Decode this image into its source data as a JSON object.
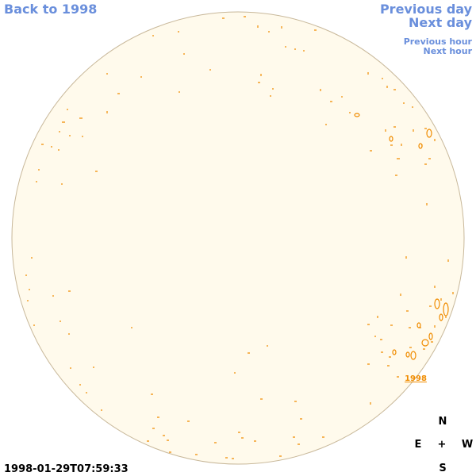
{
  "navigation": {
    "back": "Back to 1998",
    "previous_day": "Previous day",
    "next_day": "Next day",
    "previous_hour": "Previous hour",
    "next_hour": "Next hour"
  },
  "region_label": "1998",
  "compass": {
    "north": "N",
    "east": "E",
    "center": "+",
    "west": "W",
    "south": "S"
  },
  "timestamp": "1998-01-29T07:59:33"
}
